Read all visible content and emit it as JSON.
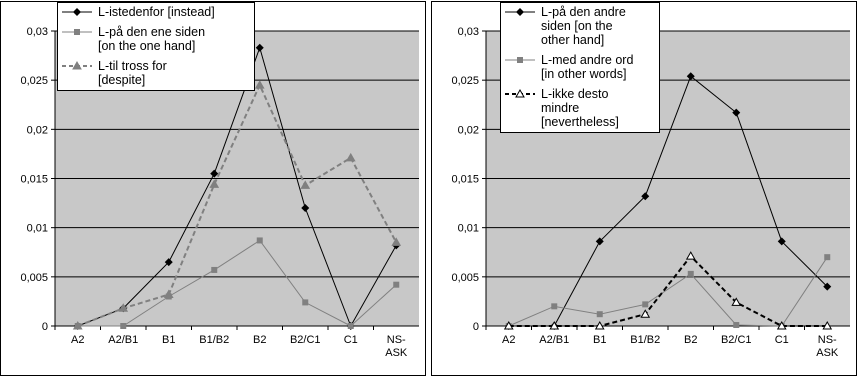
{
  "chart_data": [
    {
      "type": "line",
      "categories": [
        "A2",
        "A2/B1",
        "B1",
        "B1/B2",
        "B2",
        "B2/C1",
        "C1",
        "NS-ASK"
      ],
      "ylim": [
        0,
        0.03
      ],
      "yticks": [
        0,
        {
          "value": 0.005,
          "label": "0,005"
        },
        {
          "value": 0.01,
          "label": "0,01"
        },
        {
          "value": 0.015,
          "label": "0,015"
        },
        {
          "value": 0.02,
          "label": "0,02"
        },
        {
          "value": 0.025,
          "label": "0,025"
        },
        {
          "value": 0.03,
          "label": "0,03"
        }
      ],
      "grid": true,
      "series": [
        {
          "name": "L-istedenfor [instead]",
          "color": "#000000",
          "marker": "diamond",
          "dashed": false,
          "values": [
            0,
            0.0018,
            0.0065,
            0.0155,
            0.0283,
            0.012,
            0,
            0.0082
          ]
        },
        {
          "name": "L-på den ene siden [on the one hand]",
          "color": "#808080",
          "marker": "square",
          "dashed": false,
          "values": [
            0,
            0,
            0.003,
            0.0057,
            0.0087,
            0.0024,
            0,
            0.0042
          ]
        },
        {
          "name": "L-til tross for [despite]",
          "color": "#808080",
          "marker": "triangle",
          "dashed": true,
          "values": [
            0,
            0.0018,
            0.0032,
            0.0144,
            0.0245,
            0.0143,
            0.0171,
            0.0085
          ]
        }
      ]
    },
    {
      "type": "line",
      "categories": [
        "A2",
        "A2/B1",
        "B1",
        "B1/B2",
        "B2",
        "B2/C1",
        "C1",
        "NS-ASK"
      ],
      "ylim": [
        0,
        0.03
      ],
      "yticks": [
        0,
        {
          "value": 0.005,
          "label": "0,005"
        },
        {
          "value": 0.01,
          "label": "0,01"
        },
        {
          "value": 0.015,
          "label": "0,015"
        },
        {
          "value": 0.02,
          "label": "0,02"
        },
        {
          "value": 0.025,
          "label": "0,025"
        },
        {
          "value": 0.03,
          "label": "0,03"
        }
      ],
      "grid": true,
      "series": [
        {
          "name": "L-på den andre siden [on the other hand]",
          "color": "#000000",
          "marker": "diamond",
          "dashed": false,
          "values": [
            0,
            0,
            0.0086,
            0.0132,
            0.0254,
            0.0217,
            0.0086,
            0.004
          ]
        },
        {
          "name": "L-med andre ord [in other words]",
          "color": "#808080",
          "marker": "square",
          "dashed": false,
          "values": [
            0,
            0.002,
            0.0012,
            0.0022,
            0.0053,
            0.0001,
            0,
            0.007
          ]
        },
        {
          "name": "L-ikke desto mindre [nevertheless]",
          "color": "#000000",
          "marker": "triangle-open",
          "dashed": true,
          "values": [
            0,
            0,
            0,
            0.0012,
            0.0071,
            0.0024,
            0,
            0
          ]
        }
      ]
    }
  ]
}
